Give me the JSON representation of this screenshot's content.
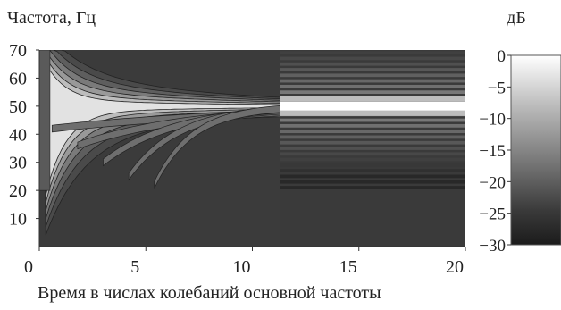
{
  "chart_data": {
    "type": "heatmap",
    "title": "",
    "ylabel": "Частота, Гц",
    "xlabel": "Время в числах колебаний основной частоты",
    "colorbar_label": "дБ",
    "xlim": [
      0,
      20
    ],
    "ylim": [
      0,
      70
    ],
    "x_ticks": [
      "0",
      "5",
      "10",
      "15",
      "20"
    ],
    "y_ticks": [
      "10",
      "20",
      "30",
      "40",
      "50",
      "60",
      "70"
    ],
    "colorbar_range": [
      -30,
      0
    ],
    "colorbar_ticks": [
      "0",
      "−5",
      "−10",
      "−15",
      "−20",
      "−25",
      "−30"
    ],
    "fundamental_frequency_hz": 50,
    "transition_time": 11.3,
    "colormap": "grayscale (dark = −30 dB, white = 0 dB)",
    "contour_levels_db": [
      -25,
      -20,
      -15,
      -10,
      -5,
      -2
    ],
    "grid": false
  }
}
